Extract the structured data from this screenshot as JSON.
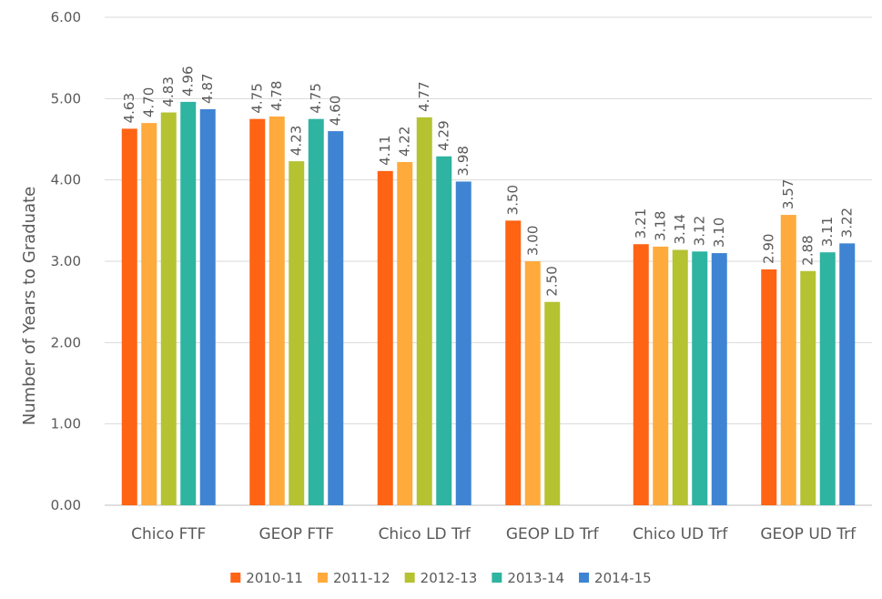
{
  "chart_data": {
    "type": "bar",
    "title": "",
    "xlabel": "",
    "ylabel": "Number of Years to Graduate",
    "ylim": [
      0,
      6
    ],
    "yticks": [
      "0.00",
      "1.00",
      "2.00",
      "3.00",
      "4.00",
      "5.00",
      "6.00"
    ],
    "grid": true,
    "legend_position": "bottom",
    "categories": [
      "Chico FTF",
      "GEOP FTF",
      "Chico LD Trf",
      "GEOP LD Trf",
      "Chico UD Trf",
      "GEOP UD Trf"
    ],
    "series": [
      {
        "name": "2010-11",
        "color": "#FF6314",
        "values": [
          4.63,
          4.75,
          4.11,
          3.5,
          3.21,
          2.9
        ],
        "labels": [
          "4.63",
          "4.75",
          "4.11",
          "3.50",
          "3.21",
          "2.90"
        ]
      },
      {
        "name": "2011-12",
        "color": "#FFAA3C",
        "values": [
          4.7,
          4.78,
          4.22,
          3.0,
          3.18,
          3.57
        ],
        "labels": [
          "4.70",
          "4.78",
          "4.22",
          "3.00",
          "3.18",
          "3.57"
        ]
      },
      {
        "name": "2012-13",
        "color": "#B5C232",
        "values": [
          4.83,
          4.23,
          4.77,
          2.5,
          3.14,
          2.88
        ],
        "labels": [
          "4.83",
          "4.23",
          "4.77",
          "2.50",
          "3.14",
          "2.88"
        ]
      },
      {
        "name": "2013-14",
        "color": "#2EB4A0",
        "values": [
          4.96,
          4.75,
          4.29,
          null,
          3.12,
          3.11
        ],
        "labels": [
          "4.96",
          "4.75",
          "4.29",
          "",
          "3.12",
          "3.11"
        ]
      },
      {
        "name": "2014-15",
        "color": "#3F84D2",
        "values": [
          4.87,
          4.6,
          3.98,
          null,
          3.1,
          3.22
        ],
        "labels": [
          "4.87",
          "4.60",
          "3.98",
          "",
          "3.10",
          "3.22"
        ]
      }
    ]
  }
}
